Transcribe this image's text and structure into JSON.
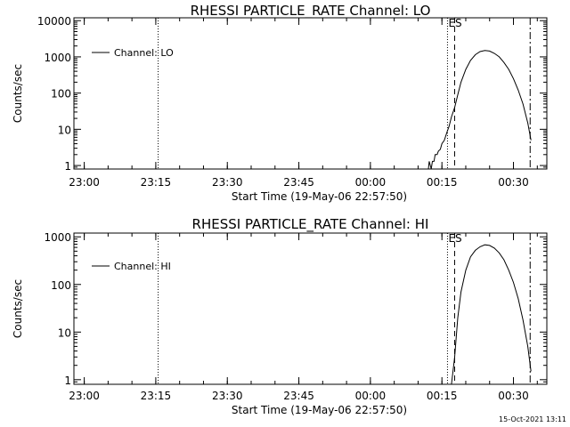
{
  "footer": {
    "timestamp": "15-Oct-2021 13:11"
  },
  "chart_data": [
    {
      "type": "line",
      "title": "RHESSI PARTICLE_RATE Channel: LO",
      "xlabel": "Start Time (19-May-06 22:57:50)",
      "ylabel": "Counts/sec",
      "y_scale": "log",
      "xlim": [
        "22:57:50",
        "00:37:00"
      ],
      "ylim": [
        0.8,
        12000
      ],
      "x_ticks": [
        "23:00",
        "23:15",
        "23:30",
        "23:45",
        "00:00",
        "00:15",
        "00:30"
      ],
      "y_ticks": [
        {
          "value": 1,
          "label": "1"
        },
        {
          "value": 10,
          "label": "10"
        },
        {
          "value": 100,
          "label": "100"
        },
        {
          "value": 1000,
          "label": "1000"
        },
        {
          "value": 10000,
          "label": "10000"
        }
      ],
      "legend": {
        "position": "top-left",
        "entries": [
          "Channel: LO"
        ]
      },
      "annotations": [
        {
          "type": "vline",
          "style": "dotted",
          "x": "23:15:30",
          "label": ""
        },
        {
          "type": "vline",
          "style": "dotted",
          "x": "00:16:10",
          "label": ""
        },
        {
          "type": "vline",
          "style": "dashed",
          "x": "00:17:40",
          "label": "ES"
        },
        {
          "type": "vline",
          "style": "dashdot",
          "x": "00:33:30",
          "label": ""
        }
      ],
      "series": [
        {
          "name": "Channel: LO",
          "points": [
            [
              "00:12:10",
              0.8
            ],
            [
              "00:12:20",
              1.3
            ],
            [
              "00:12:45",
              0.8
            ],
            [
              "00:13:00",
              1.3
            ],
            [
              "00:13:20",
              1.3
            ],
            [
              "00:13:35",
              2.0
            ],
            [
              "00:14:00",
              2.0
            ],
            [
              "00:14:15",
              2.5
            ],
            [
              "00:14:40",
              2.8
            ],
            [
              "00:15:00",
              4.0
            ],
            [
              "00:15:30",
              5.0
            ],
            [
              "00:16:00",
              8.0
            ],
            [
              "00:16:30",
              12
            ],
            [
              "00:17:00",
              22
            ],
            [
              "00:17:40",
              40
            ],
            [
              "00:18:20",
              90
            ],
            [
              "00:19:00",
              200
            ],
            [
              "00:20:00",
              450
            ],
            [
              "00:21:00",
              800
            ],
            [
              "00:22:00",
              1150
            ],
            [
              "00:23:00",
              1400
            ],
            [
              "00:24:00",
              1500
            ],
            [
              "00:25:00",
              1450
            ],
            [
              "00:26:00",
              1250
            ],
            [
              "00:27:00",
              1000
            ],
            [
              "00:28:00",
              700
            ],
            [
              "00:29:00",
              450
            ],
            [
              "00:30:00",
              250
            ],
            [
              "00:31:00",
              120
            ],
            [
              "00:32:00",
              50
            ],
            [
              "00:33:00",
              15
            ],
            [
              "00:33:40",
              5
            ]
          ]
        }
      ]
    },
    {
      "type": "line",
      "title": "RHESSI PARTICLE_RATE Channel: HI",
      "xlabel": "Start Time (19-May-06 22:57:50)",
      "ylabel": "Counts/sec",
      "y_scale": "log",
      "xlim": [
        "22:57:50",
        "00:37:00"
      ],
      "ylim": [
        0.8,
        1200
      ],
      "x_ticks": [
        "23:00",
        "23:15",
        "23:30",
        "23:45",
        "00:00",
        "00:15",
        "00:30"
      ],
      "y_ticks": [
        {
          "value": 1,
          "label": "1"
        },
        {
          "value": 10,
          "label": "10"
        },
        {
          "value": 100,
          "label": "100"
        },
        {
          "value": 1000,
          "label": "1000"
        }
      ],
      "legend": {
        "position": "top-left",
        "entries": [
          "Channel: HI"
        ]
      },
      "annotations": [
        {
          "type": "vline",
          "style": "dotted",
          "x": "23:15:30",
          "label": ""
        },
        {
          "type": "vline",
          "style": "dotted",
          "x": "00:16:10",
          "label": ""
        },
        {
          "type": "vline",
          "style": "dashed",
          "x": "00:17:40",
          "label": "ES"
        },
        {
          "type": "vline",
          "style": "dashdot",
          "x": "00:33:30",
          "label": ""
        }
      ],
      "series": [
        {
          "name": "Channel: HI",
          "points": [
            [
              "00:17:00",
              0.8
            ],
            [
              "00:17:40",
              3
            ],
            [
              "00:18:20",
              20
            ],
            [
              "00:19:00",
              70
            ],
            [
              "00:20:00",
              200
            ],
            [
              "00:21:00",
              380
            ],
            [
              "00:22:00",
              520
            ],
            [
              "00:23:00",
              620
            ],
            [
              "00:24:00",
              680
            ],
            [
              "00:25:00",
              660
            ],
            [
              "00:26:00",
              580
            ],
            [
              "00:27:00",
              460
            ],
            [
              "00:28:00",
              330
            ],
            [
              "00:29:00",
              200
            ],
            [
              "00:30:00",
              110
            ],
            [
              "00:31:00",
              50
            ],
            [
              "00:32:00",
              18
            ],
            [
              "00:33:00",
              5
            ],
            [
              "00:33:40",
              1.5
            ]
          ]
        }
      ]
    }
  ]
}
